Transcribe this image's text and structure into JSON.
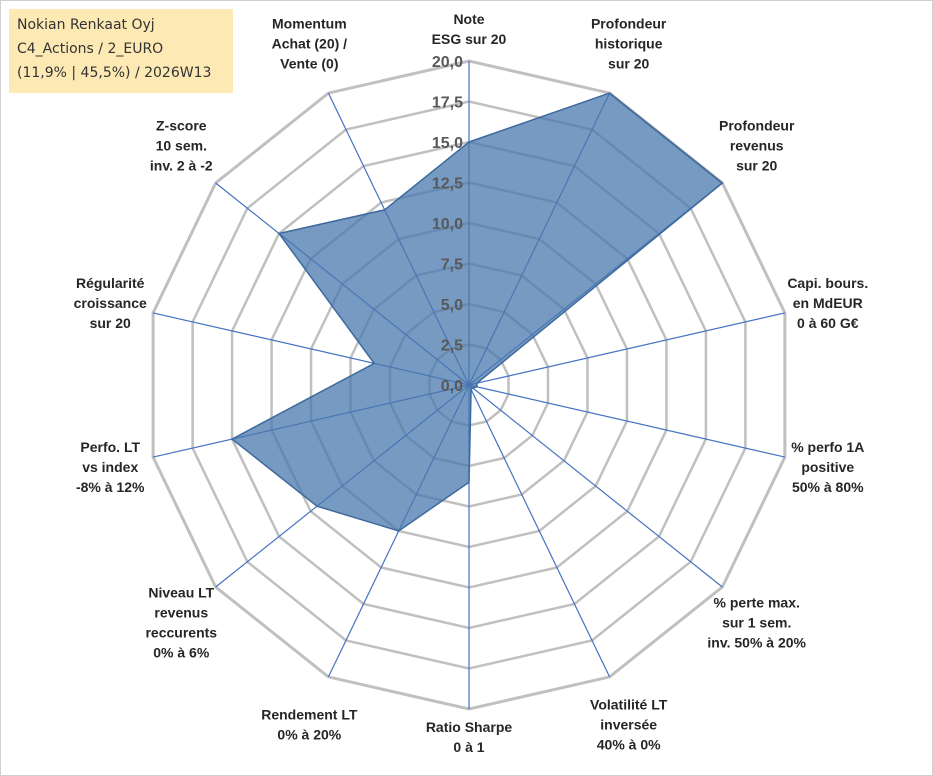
{
  "info_box": {
    "line1": "Nokian Renkaat Oyj",
    "line2": "C4_Actions / 2_EURO",
    "line3": "(11,9% | 45,5%) / 2026W13"
  },
  "colors": {
    "fill": "#4a78ad",
    "fill_opacity": 0.75,
    "grid": "#c0c0c0",
    "spoke": "#4472c4"
  },
  "chart_data": {
    "type": "radar",
    "rmax": 20,
    "ticks": [
      {
        "value": 0,
        "label": "0,0"
      },
      {
        "value": 2.5,
        "label": "2,5"
      },
      {
        "value": 5,
        "label": "5,0"
      },
      {
        "value": 7.5,
        "label": "7,5"
      },
      {
        "value": 10,
        "label": "10,0"
      },
      {
        "value": 12.5,
        "label": "12,5"
      },
      {
        "value": 15,
        "label": "15,0"
      },
      {
        "value": 17.5,
        "label": "17,5"
      },
      {
        "value": 20,
        "label": "20,0"
      }
    ],
    "axes": [
      {
        "label": [
          "Note",
          "ESG sur 20"
        ],
        "value": 15
      },
      {
        "label": [
          "Profondeur",
          "historique",
          "sur 20"
        ],
        "value": 20
      },
      {
        "label": [
          "Profondeur",
          "revenus",
          "sur 20"
        ],
        "value": 20
      },
      {
        "label": [
          "Capi. bours.",
          "en MdEUR",
          "0 à 60 G€"
        ],
        "value": 0.5
      },
      {
        "label": [
          "% perfo 1A",
          "positive",
          "50% à 80%"
        ],
        "value": 0.5
      },
      {
        "label": [
          "% perte max.",
          "sur 1 sem.",
          "inv. 50% à 20%"
        ],
        "value": 0.3
      },
      {
        "label": [
          "Volatilité LT",
          "inversée",
          "40% à 0%"
        ],
        "value": 0.3
      },
      {
        "label": [
          "Ratio Sharpe",
          "0 à 1"
        ],
        "value": 6
      },
      {
        "label": [
          "Rendement LT",
          "0% à 20%"
        ],
        "value": 10
      },
      {
        "label": [
          "Niveau LT",
          "revenus",
          "reccurents",
          "0% à 6%"
        ],
        "value": 12
      },
      {
        "label": [
          "Perfo. LT",
          "vs index",
          "-8% à 12%"
        ],
        "value": 15
      },
      {
        "label": [
          "Régularité",
          "croissance",
          "sur 20"
        ],
        "value": 6
      },
      {
        "label": [
          "Z-score",
          "10 sem.",
          "inv. 2 à -2"
        ],
        "value": 15
      },
      {
        "label": [
          "Momentum",
          "Achat (20) /",
          "Vente (0)"
        ],
        "value": 12
      }
    ]
  }
}
